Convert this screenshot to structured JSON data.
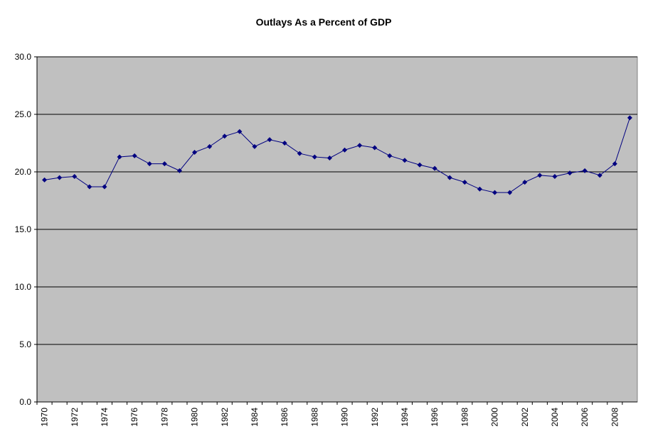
{
  "chart_data": {
    "type": "line",
    "title": "Outlays As a Percent of GDP",
    "categories": [
      "1970",
      null,
      "1972",
      null,
      "1974",
      null,
      "1976",
      null,
      "1978",
      null,
      "1980",
      null,
      "1982",
      null,
      "1984",
      null,
      "1986",
      null,
      "1988",
      null,
      "1990",
      null,
      "1992",
      null,
      "1994",
      null,
      "1996",
      null,
      "1998",
      null,
      "2000",
      null,
      "2002",
      null,
      "2004",
      null,
      "2006",
      null,
      "2008",
      null
    ],
    "values": [
      19.3,
      19.5,
      19.6,
      18.7,
      18.7,
      21.3,
      21.4,
      20.7,
      20.7,
      20.1,
      21.7,
      22.2,
      23.1,
      23.5,
      22.2,
      22.8,
      22.5,
      21.6,
      21.3,
      21.2,
      21.9,
      22.3,
      22.1,
      21.4,
      21.0,
      20.6,
      20.3,
      19.5,
      19.1,
      18.5,
      18.2,
      18.2,
      19.1,
      19.7,
      19.6,
      19.9,
      20.1,
      19.7,
      20.7,
      24.7
    ],
    "color": "#000080",
    "ylim": [
      0,
      30
    ],
    "yticks": [
      {
        "value": 0,
        "label": "0.0"
      },
      {
        "value": 5,
        "label": "5.0"
      },
      {
        "value": 10,
        "label": "10.0"
      },
      {
        "value": 15,
        "label": "15.0"
      },
      {
        "value": 20,
        "label": "20.0"
      },
      {
        "value": 25,
        "label": "25.0"
      },
      {
        "value": 30,
        "label": "30.0"
      }
    ],
    "grid": true,
    "plot_background": "#c0c0c0"
  }
}
